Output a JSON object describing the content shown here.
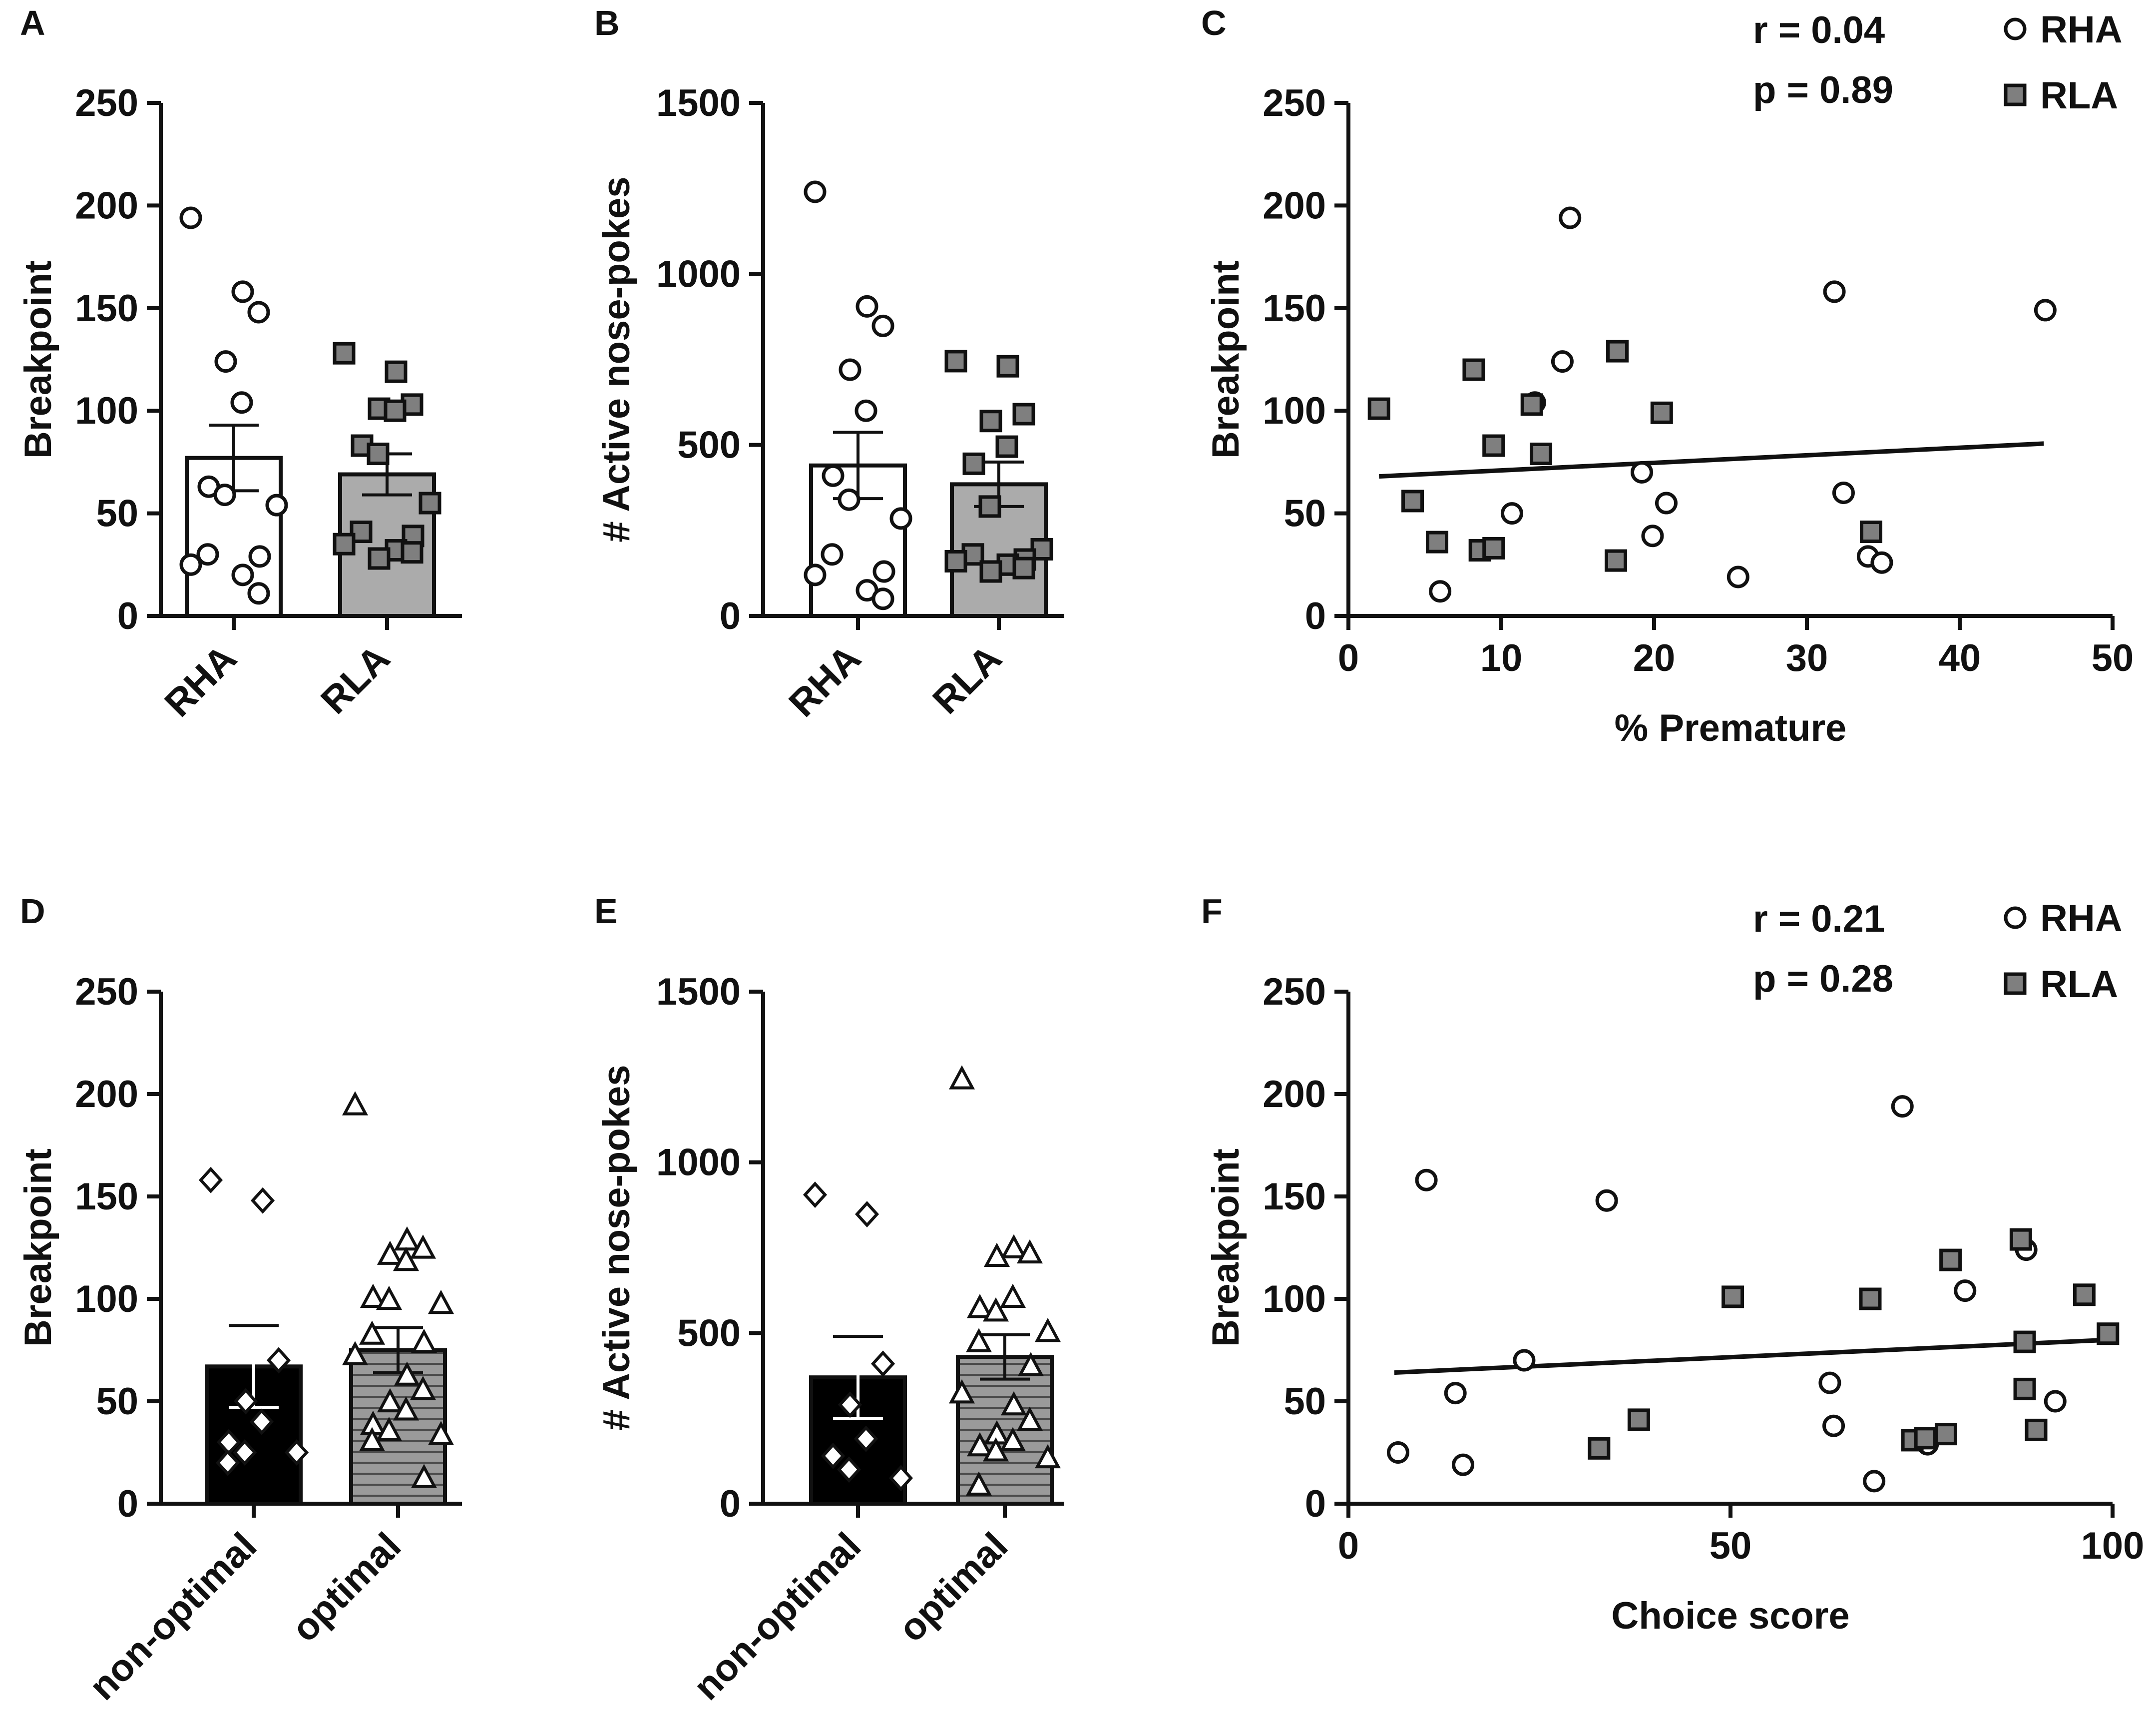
{
  "figure": {
    "colors": {
      "ink": "#111111",
      "rla_fill": "#7f7f7f",
      "rla_bar": "#ababab",
      "group_bar": "#000000",
      "stripe_bar": "#9a9a9a",
      "white": "#ffffff"
    }
  },
  "chart_data": [
    {
      "panel": "A",
      "type": "bar",
      "ylabel": "Breakpoint",
      "ylim": [
        0,
        250
      ],
      "yticks": [
        0,
        50,
        100,
        150,
        200,
        250
      ],
      "categories": [
        "RHA",
        "RLA"
      ],
      "xlabel_rotated": true,
      "series": [
        {
          "name": "RHA",
          "value": 77,
          "sem": 16,
          "style": "white",
          "marker": "circle",
          "points": [
            194,
            158,
            148,
            124,
            104,
            63,
            59,
            54,
            30,
            29,
            25,
            20,
            11
          ]
        },
        {
          "name": "RLA",
          "value": 69,
          "sem": 10,
          "style": "gray",
          "marker": "square",
          "points": [
            128,
            119,
            103,
            101,
            100,
            83,
            79,
            55,
            41,
            39,
            35,
            32,
            31,
            28
          ]
        }
      ]
    },
    {
      "panel": "B",
      "type": "bar",
      "ylabel": "# Active nose-pokes",
      "ylim": [
        0,
        1500
      ],
      "yticks": [
        0,
        500,
        1000,
        1500
      ],
      "categories": [
        "RHA",
        "RLA"
      ],
      "xlabel_rotated": true,
      "series": [
        {
          "name": "RHA",
          "value": 440,
          "sem": 97,
          "style": "white",
          "marker": "circle",
          "points": [
            1240,
            905,
            848,
            720,
            600,
            410,
            340,
            285,
            180,
            130,
            120,
            75,
            50
          ]
        },
        {
          "name": "RLA",
          "value": 385,
          "sem": 65,
          "style": "gray",
          "marker": "square",
          "points": [
            745,
            730,
            590,
            570,
            495,
            445,
            320,
            195,
            180,
            165,
            160,
            150,
            140,
            130
          ]
        }
      ]
    },
    {
      "panel": "C",
      "type": "scatter",
      "xlabel": "% Premature",
      "ylabel": "Breakpoint",
      "xlim": [
        0,
        50
      ],
      "ylim": [
        0,
        250
      ],
      "xticks": [
        0,
        10,
        20,
        30,
        40,
        50
      ],
      "yticks": [
        0,
        50,
        100,
        150,
        200,
        250
      ],
      "stats": [
        "r = 0.04",
        "p = 0.89"
      ],
      "legend": [
        {
          "label": "RHA",
          "marker": "circle"
        },
        {
          "label": "RLA",
          "marker": "square"
        }
      ],
      "fit": {
        "x": [
          2,
          45.5
        ],
        "y": [
          68,
          84
        ]
      },
      "series": [
        {
          "name": "RHA",
          "marker": "circle",
          "x": [
            14.5,
            31.8,
            45.6,
            14,
            12.2,
            19.2,
            10.7,
            20.8,
            32.4,
            19.9,
            34,
            34.9,
            25.5,
            6
          ],
          "y": [
            194,
            158,
            149,
            124,
            104,
            70,
            50,
            55,
            60,
            39,
            29,
            26,
            19,
            12
          ]
        },
        {
          "name": "RLA",
          "marker": "square",
          "x": [
            2,
            17.6,
            8.2,
            12,
            20.5,
            9.5,
            12.6,
            4.2,
            5.8,
            8.6,
            9.5,
            17.5,
            34.2
          ],
          "y": [
            101,
            129,
            120,
            103,
            99,
            83,
            79,
            56,
            36,
            32,
            33,
            27,
            41
          ]
        }
      ]
    },
    {
      "panel": "D",
      "type": "bar",
      "ylabel": "Breakpoint",
      "ylim": [
        0,
        250
      ],
      "yticks": [
        0,
        50,
        100,
        150,
        200,
        250
      ],
      "categories": [
        "non-optimal",
        "optimal"
      ],
      "xlabel_rotated": true,
      "series": [
        {
          "name": "non-optimal",
          "value": 67,
          "sem": 20,
          "style": "black",
          "marker": "diamond",
          "points": [
            158,
            148,
            70,
            50,
            40,
            30,
            25,
            25,
            20
          ]
        },
        {
          "name": "optimal",
          "value": 75,
          "sem": 11,
          "style": "striped",
          "marker": "triangle",
          "points": [
            194,
            128,
            124,
            121,
            118,
            100,
            99,
            97,
            82,
            78,
            72,
            62,
            55,
            49,
            45,
            38,
            35,
            33,
            30,
            12
          ]
        }
      ]
    },
    {
      "panel": "E",
      "type": "bar",
      "ylabel": "# Active nose-pokes",
      "ylim": [
        0,
        1500
      ],
      "yticks": [
        0,
        500,
        1000,
        1500
      ],
      "categories": [
        "non-optimal",
        "optimal"
      ],
      "xlabel_rotated": true,
      "series": [
        {
          "name": "non-optimal",
          "value": 370,
          "sem": 120,
          "style": "black",
          "marker": "diamond",
          "points": [
            905,
            848,
            410,
            290,
            190,
            140,
            100,
            75
          ]
        },
        {
          "name": "optimal",
          "value": 430,
          "sem": 65,
          "style": "striped",
          "marker": "triangle",
          "points": [
            1240,
            745,
            730,
            720,
            600,
            570,
            560,
            500,
            470,
            400,
            320,
            285,
            240,
            200,
            180,
            165,
            150,
            130,
            50
          ]
        }
      ]
    },
    {
      "panel": "F",
      "type": "scatter",
      "xlabel": "Choice score",
      "ylabel": "Breakpoint",
      "xlim": [
        0,
        100
      ],
      "ylim": [
        0,
        250
      ],
      "xticks": [
        0,
        50,
        100
      ],
      "yticks": [
        0,
        50,
        100,
        150,
        200,
        250
      ],
      "stats": [
        "r = 0.21",
        "p = 0.28"
      ],
      "legend": [
        {
          "label": "RHA",
          "marker": "circle"
        },
        {
          "label": "RLA",
          "marker": "square"
        }
      ],
      "fit": {
        "x": [
          6,
          99.5
        ],
        "y": [
          64,
          80
        ]
      },
      "series": [
        {
          "name": "RHA",
          "marker": "circle",
          "x": [
            72.5,
            10.2,
            33.8,
            88.7,
            80.7,
            23,
            14,
            63,
            92.5,
            63.5,
            75.8,
            6.5,
            15,
            68.8
          ],
          "y": [
            194,
            158,
            148,
            124,
            104,
            70,
            54,
            59,
            50,
            38,
            29,
            25,
            19,
            11
          ]
        },
        {
          "name": "RLA",
          "marker": "square",
          "x": [
            88,
            78.8,
            50.3,
            68.3,
            96.3,
            99.4,
            88.5,
            88.5,
            90,
            38,
            32.8,
            73.8,
            78.2,
            75.5
          ],
          "y": [
            129,
            119,
            101,
            100,
            102,
            83,
            79,
            56,
            36,
            41,
            27,
            31,
            34,
            32
          ]
        }
      ]
    }
  ],
  "panel_labels": [
    "A",
    "B",
    "C",
    "D",
    "E",
    "F"
  ]
}
